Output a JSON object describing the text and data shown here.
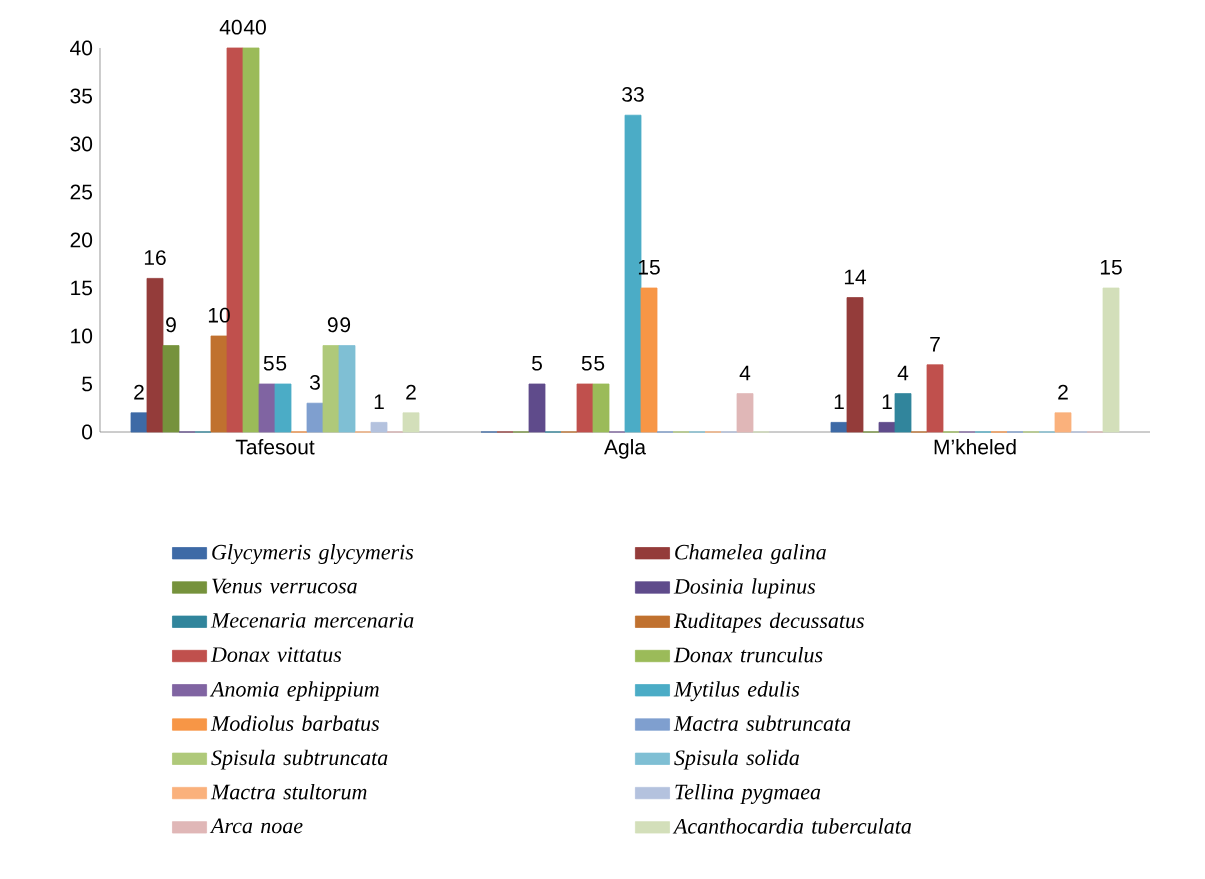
{
  "chart_data": {
    "type": "bar",
    "categories": [
      "Tafesout",
      "Agla",
      "M’kheled"
    ],
    "ylim": [
      0,
      40
    ],
    "yticks": [
      0,
      5,
      10,
      15,
      20,
      25,
      30,
      35,
      40
    ],
    "legend": "bottom",
    "series": [
      {
        "name": "Glycymeris glycymeris",
        "color": "#3e6aa6",
        "values": [
          2,
          0,
          1
        ],
        "value_labels": [
          "2",
          null,
          "1"
        ]
      },
      {
        "name": "Chamelea galina",
        "color": "#943c3a",
        "values": [
          16,
          0,
          14
        ],
        "value_labels": [
          "16",
          null,
          "14"
        ]
      },
      {
        "name": "Venus verrucosa",
        "color": "#76923c",
        "values": [
          9,
          0,
          0
        ],
        "value_labels": [
          "9",
          null,
          null
        ]
      },
      {
        "name": "Dosinia lupinus",
        "color": "#5f4b8b",
        "values": [
          0,
          5,
          1
        ],
        "value_labels": [
          null,
          "5",
          "1"
        ]
      },
      {
        "name": "Mecenaria mercenaria",
        "color": "#31859c",
        "values": [
          0,
          0,
          4
        ],
        "value_labels": [
          null,
          null,
          "4"
        ]
      },
      {
        "name": "Ruditapes decussatus",
        "color": "#c0712f",
        "values": [
          10,
          0,
          0
        ],
        "value_labels": [
          "10",
          null,
          null
        ]
      },
      {
        "name": "Donax vittatus",
        "color": "#c0504d",
        "values": [
          40,
          5,
          7
        ],
        "value_labels": [
          "40",
          "5",
          "7"
        ]
      },
      {
        "name": "Donax trunculus",
        "color": "#9bbb59",
        "values": [
          40,
          5,
          0
        ],
        "value_labels": [
          "40",
          "5",
          null
        ]
      },
      {
        "name": "Anomia ephippium",
        "color": "#8064a2",
        "values": [
          5,
          0,
          0
        ],
        "value_labels": [
          "5",
          null,
          null
        ]
      },
      {
        "name": "Mytilus edulis",
        "color": "#4bacc6",
        "values": [
          5,
          33,
          0
        ],
        "value_labels": [
          "5",
          "33",
          null
        ]
      },
      {
        "name": "Modiolus barbatus",
        "color": "#f79646",
        "values": [
          0,
          15,
          0
        ],
        "value_labels": [
          null,
          "15",
          null
        ]
      },
      {
        "name": "Mactra subtruncata",
        "color": "#7f9fcf",
        "values": [
          3,
          0,
          0
        ],
        "value_labels": [
          "3",
          null,
          null
        ]
      },
      {
        "name": "Spisula subtruncata",
        "color": "#afc97a",
        "values": [
          9,
          0,
          0
        ],
        "value_labels": [
          "9",
          null,
          null
        ]
      },
      {
        "name": "Spisula solida",
        "color": "#7fbfd4",
        "values": [
          9,
          0,
          0
        ],
        "value_labels": [
          "9",
          null,
          null
        ]
      },
      {
        "name": "Mactra stultorum",
        "color": "#fab17c",
        "values": [
          0,
          0,
          2
        ],
        "value_labels": [
          null,
          null,
          "2"
        ]
      },
      {
        "name": "Tellina pygmaea",
        "color": "#b4c2de",
        "values": [
          1,
          0,
          0
        ],
        "value_labels": [
          "1",
          null,
          null
        ]
      },
      {
        "name": "Arca noae",
        "color": "#e0b7b7",
        "values": [
          0,
          4,
          0
        ],
        "value_labels": [
          null,
          "4",
          null
        ]
      },
      {
        "name": "Acanthocardia tuberculata",
        "color": "#d3dfba",
        "values": [
          2,
          0,
          15
        ],
        "value_labels": [
          "2",
          null,
          "15"
        ]
      }
    ]
  }
}
